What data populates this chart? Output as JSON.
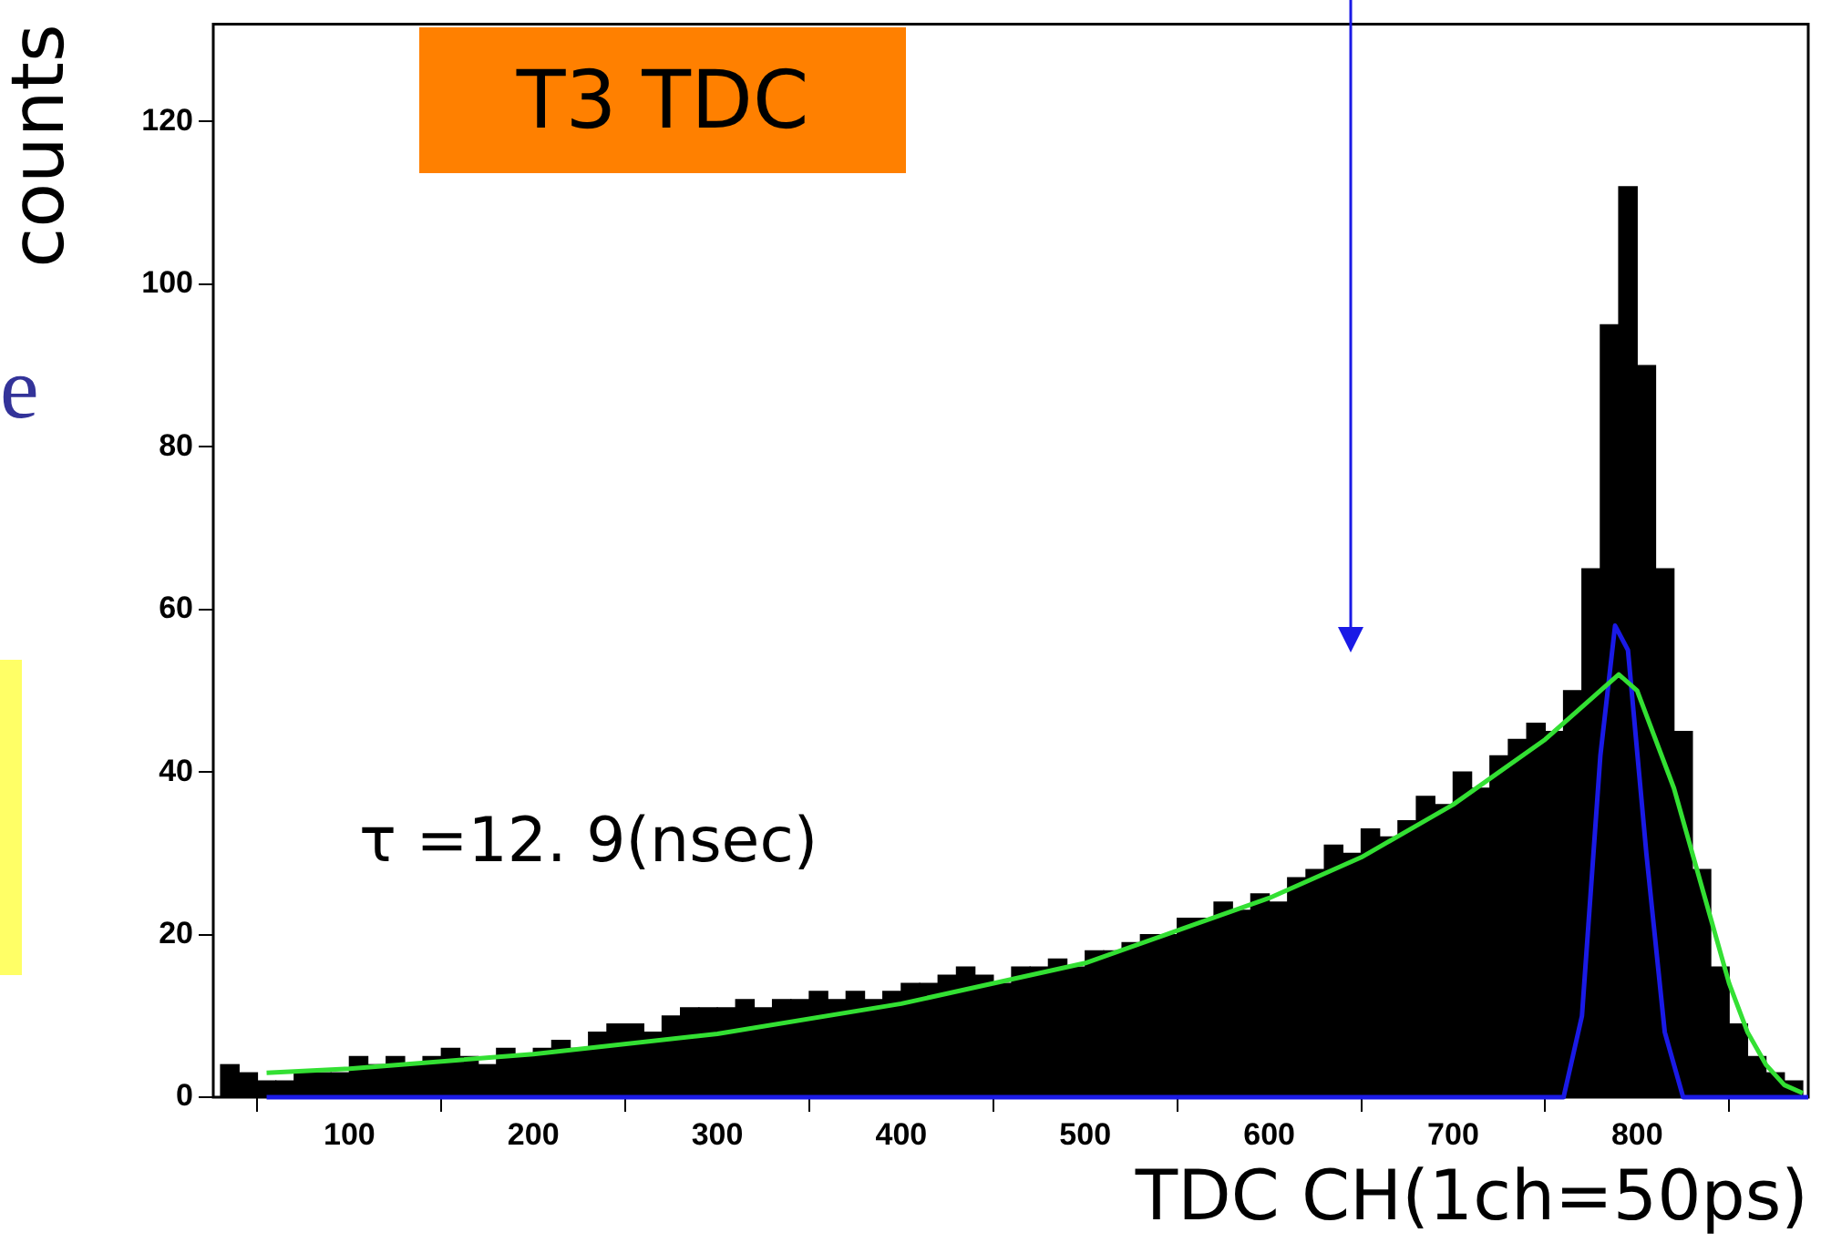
{
  "chart_data": {
    "type": "histogram",
    "title": "T3 TDC",
    "xlabel": "TDC CH(1ch=50ps)",
    "ylabel": "counts",
    "annotations": [
      "τ =12. 9(nsec)",
      "e"
    ],
    "bins": [
      30,
      40,
      50,
      60,
      70,
      80,
      90,
      100,
      110,
      120,
      130,
      140,
      150,
      160,
      170,
      180,
      190,
      200,
      210,
      220,
      230,
      240,
      250,
      260,
      270,
      280,
      290,
      300,
      310,
      320,
      330,
      340,
      350,
      360,
      370,
      380,
      390,
      400,
      410,
      420,
      430,
      440,
      450,
      460,
      470,
      480,
      490,
      500,
      510,
      520,
      530,
      540,
      550,
      560,
      570,
      580,
      590,
      600,
      610,
      620,
      630,
      640,
      650,
      660,
      670,
      680,
      690,
      700,
      710,
      720,
      730,
      740,
      750,
      760,
      770,
      780,
      790,
      800,
      810,
      820,
      830,
      840,
      850,
      860,
      870,
      880,
      890
    ],
    "values": [
      4,
      3,
      2,
      2,
      3,
      3,
      3,
      5,
      4,
      5,
      4,
      5,
      6,
      5,
      4,
      6,
      5,
      6,
      7,
      6,
      8,
      9,
      9,
      8,
      10,
      11,
      11,
      11,
      12,
      11,
      12,
      12,
      13,
      12,
      13,
      12,
      13,
      14,
      14,
      15,
      16,
      15,
      14,
      16,
      16,
      17,
      16,
      18,
      18,
      19,
      20,
      20,
      22,
      22,
      24,
      23,
      25,
      24,
      27,
      28,
      31,
      30,
      33,
      32,
      34,
      37,
      36,
      40,
      38,
      42,
      44,
      46,
      45,
      50,
      65,
      95,
      112,
      90,
      65,
      45,
      28,
      16,
      9,
      5,
      3,
      2
    ],
    "color": "#000000",
    "series": [
      {
        "type": "line",
        "color": "#33e033",
        "x": [
          55,
          100,
          200,
          300,
          400,
          500,
          600,
          650,
          700,
          750,
          780,
          790,
          800,
          820,
          830,
          840,
          850,
          860,
          870,
          880,
          890
        ],
        "values": [
          3,
          3.5,
          5.3,
          7.8,
          11.5,
          16.5,
          24.5,
          29.5,
          36,
          44,
          50,
          52,
          50,
          38,
          30,
          22,
          14,
          8,
          4,
          1.5,
          0.5
        ]
      },
      {
        "type": "line",
        "color": "#1a1ae6",
        "x": [
          55,
          760,
          770,
          780,
          788,
          795,
          805,
          815,
          825,
          893
        ],
        "values": [
          0,
          0,
          10,
          42,
          58,
          55,
          30,
          8,
          0,
          0
        ]
      }
    ],
    "xlim": [
      26,
      893
    ],
    "ylim": [
      0,
      132
    ],
    "xticks": [
      100,
      200,
      300,
      400,
      500,
      600,
      700,
      800
    ],
    "yticks": [
      0,
      20,
      40,
      60,
      80,
      100,
      120
    ]
  }
}
